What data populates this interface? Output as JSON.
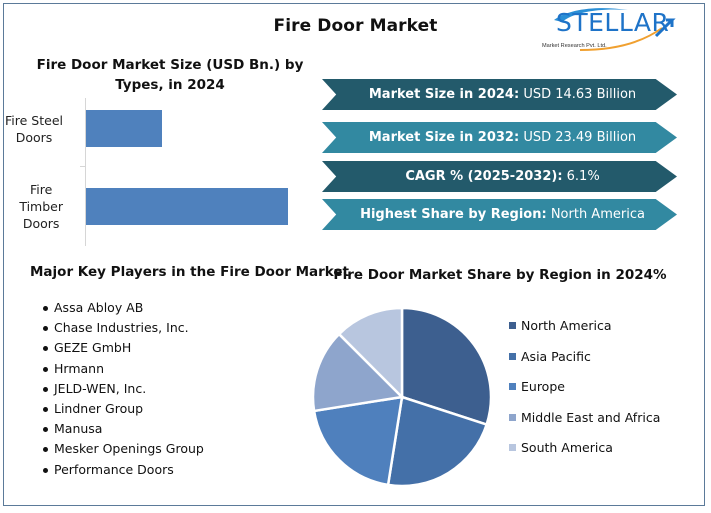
{
  "header": {
    "title": "Fire Door Market",
    "logo": {
      "word": "STELLAR",
      "tagline": "Market Research Pvt. Ltd."
    }
  },
  "banners": [
    {
      "key": "Market Size in 2024:",
      "value": " USD 14.63 Billion",
      "style": "dark"
    },
    {
      "key": "Market Size in 2032:",
      "value": " USD 23.49 Billion",
      "style": "light"
    },
    {
      "key": "CAGR % (2025-2032):",
      "value": " 6.1%",
      "style": "dark"
    },
    {
      "key": "Highest Share by Region:",
      "value": " North America",
      "style": "light"
    }
  ],
  "key_players": {
    "title": "Major Key Players in the Fire Door Market",
    "items": [
      "Assa Abloy AB",
      "Chase Industries, Inc.",
      "GEZE GmbH",
      "Hrmann",
      "JELD-WEN, Inc.",
      "Lindner Group",
      "Manusa",
      "Mesker Openings Group",
      "Performance Doors"
    ]
  },
  "colors": {
    "bar": "#4f81bd",
    "banner_dark": "#235a6b",
    "banner_light": "#3289a1",
    "frame": "#5b7a99"
  },
  "chart_data": [
    {
      "type": "bar",
      "orientation": "horizontal",
      "title": "Fire Door Market Size (USD Bn.) by Types, in 2024",
      "categories": [
        "Fire Steel Doors",
        "Fire Timber Doors"
      ],
      "category_lines": [
        [
          "Fire Steel",
          "Doors"
        ],
        [
          "Fire",
          "Timber",
          "Doors"
        ]
      ],
      "values": [
        4.0,
        10.6
      ],
      "xlabel": "",
      "ylabel": "",
      "grid": false,
      "legend": "none",
      "color": "#4f81bd"
    },
    {
      "type": "pie",
      "title": "Fire Door Market Share by Region in 2024%",
      "categories": [
        "North America",
        "Asia Pacific",
        "Europe",
        "Middle East and Africa",
        "South America"
      ],
      "values": [
        30,
        22.5,
        20,
        15,
        12.5
      ],
      "colors": [
        "#3d5f8f",
        "#4470a8",
        "#4f80bd",
        "#8ea5cc",
        "#b8c6df"
      ],
      "legend_position": "right",
      "start_angle": "12 o'clock, clockwise"
    }
  ]
}
